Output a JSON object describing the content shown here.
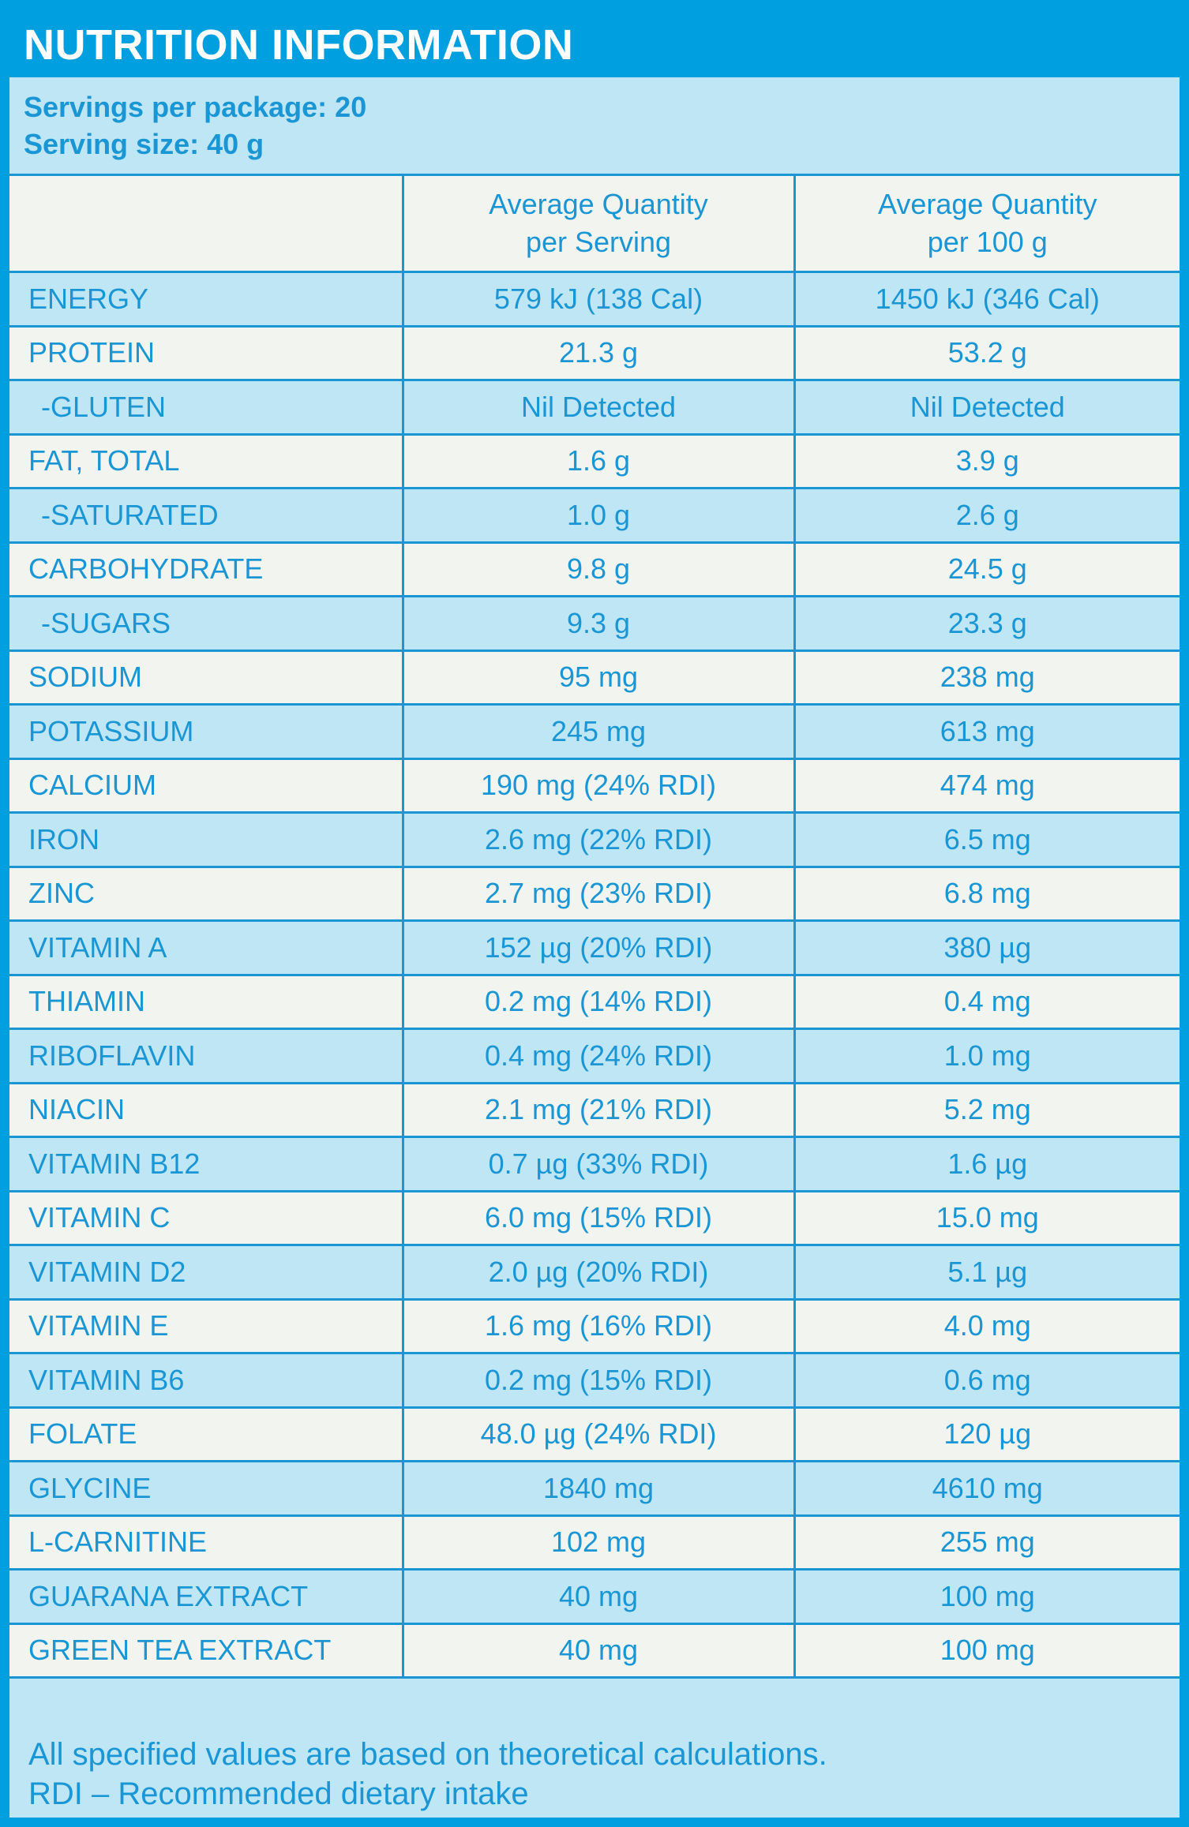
{
  "title": "NUTRITION INFORMATION",
  "servings_per_package": "Servings per package: 20",
  "serving_size": "Serving size: 40 g",
  "header": {
    "col1": "",
    "col2_line1": "Average Quantity",
    "col2_line2": "per Serving",
    "col3_line1": "Average Quantity",
    "col3_line2": "per 100 g"
  },
  "rows": [
    {
      "name": "ENERGY",
      "per_serving": "579 kJ (138 Cal)",
      "per_100g": "1450 kJ (346 Cal)",
      "indent": false
    },
    {
      "name": "PROTEIN",
      "per_serving": "21.3 g",
      "per_100g": "53.2 g",
      "indent": false
    },
    {
      "name": "-GLUTEN",
      "per_serving": "Nil Detected",
      "per_100g": "Nil Detected",
      "indent": true
    },
    {
      "name": "FAT, TOTAL",
      "per_serving": "1.6 g",
      "per_100g": "3.9 g",
      "indent": false
    },
    {
      "name": "-SATURATED",
      "per_serving": "1.0 g",
      "per_100g": "2.6 g",
      "indent": true
    },
    {
      "name": "CARBOHYDRATE",
      "per_serving": "9.8 g",
      "per_100g": "24.5 g",
      "indent": false
    },
    {
      "name": "-SUGARS",
      "per_serving": "9.3 g",
      "per_100g": "23.3 g",
      "indent": true
    },
    {
      "name": "SODIUM",
      "per_serving": "95 mg",
      "per_100g": "238 mg",
      "indent": false
    },
    {
      "name": "POTASSIUM",
      "per_serving": "245 mg",
      "per_100g": "613 mg",
      "indent": false
    },
    {
      "name": "CALCIUM",
      "per_serving": "190 mg (24% RDI)",
      "per_100g": "474 mg",
      "indent": false
    },
    {
      "name": "IRON",
      "per_serving": "2.6 mg (22% RDI)",
      "per_100g": "6.5 mg",
      "indent": false
    },
    {
      "name": "ZINC",
      "per_serving": "2.7 mg (23% RDI)",
      "per_100g": "6.8 mg",
      "indent": false
    },
    {
      "name": "VITAMIN A",
      "per_serving": "152 µg (20% RDI)",
      "per_100g": "380 µg",
      "indent": false
    },
    {
      "name": "THIAMIN",
      "per_serving": "0.2 mg (14% RDI)",
      "per_100g": "0.4 mg",
      "indent": false
    },
    {
      "name": "RIBOFLAVIN",
      "per_serving": "0.4 mg (24% RDI)",
      "per_100g": "1.0 mg",
      "indent": false
    },
    {
      "name": "NIACIN",
      "per_serving": "2.1 mg (21% RDI)",
      "per_100g": "5.2 mg",
      "indent": false
    },
    {
      "name": "VITAMIN B12",
      "per_serving": "0.7 µg (33% RDI)",
      "per_100g": "1.6 µg",
      "indent": false
    },
    {
      "name": "VITAMIN C",
      "per_serving": "6.0 mg (15% RDI)",
      "per_100g": "15.0 mg",
      "indent": false
    },
    {
      "name": "VITAMIN D2",
      "per_serving": "2.0 µg (20% RDI)",
      "per_100g": "5.1 µg",
      "indent": false
    },
    {
      "name": "VITAMIN E",
      "per_serving": "1.6 mg (16% RDI)",
      "per_100g": "4.0 mg",
      "indent": false
    },
    {
      "name": "VITAMIN B6",
      "per_serving": "0.2 mg (15% RDI)",
      "per_100g": "0.6 mg",
      "indent": false
    },
    {
      "name": "FOLATE",
      "per_serving": "48.0 µg (24% RDI)",
      "per_100g": "120 µg",
      "indent": false
    },
    {
      "name": "GLYCINE",
      "per_serving": "1840 mg",
      "per_100g": "4610 mg",
      "indent": false
    },
    {
      "name": "L-CARNITINE",
      "per_serving": "102 mg",
      "per_100g": "255 mg",
      "indent": false
    },
    {
      "name": "GUARANA EXTRACT",
      "per_serving": "40 mg",
      "per_100g": "100 mg",
      "indent": false
    },
    {
      "name": "GREEN TEA EXTRACT",
      "per_serving": "40 mg",
      "per_100g": "100 mg",
      "indent": false
    }
  ],
  "footnote_line1": "All specified values are based on theoretical calculations.",
  "footnote_line2": "RDI – Recommended dietary intake",
  "colors": {
    "brand_blue": "#009fdf",
    "text_blue": "#1a96d4",
    "row_blue": "#bfe6f4",
    "row_light": "#f2f5ef"
  }
}
